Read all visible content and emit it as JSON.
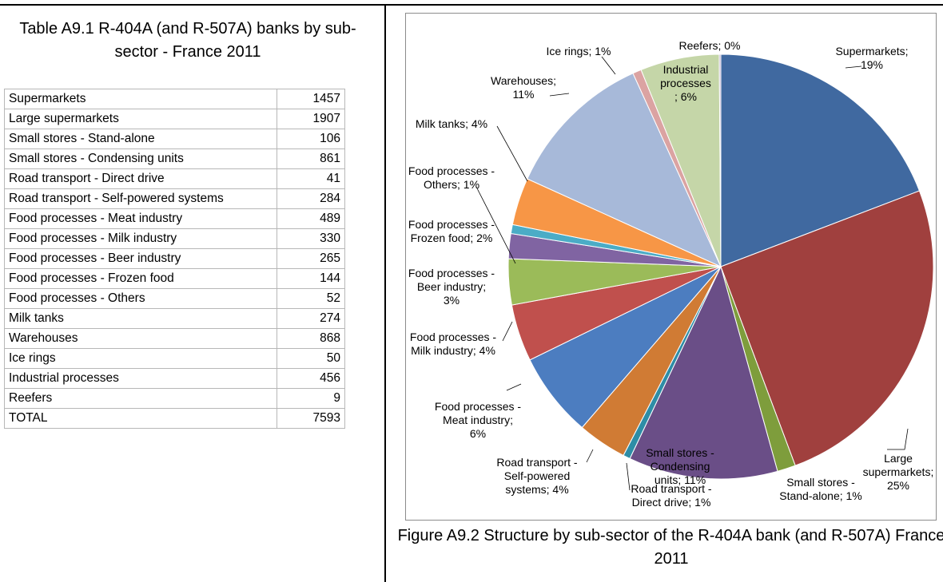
{
  "table": {
    "caption": "Table A9.1 R-404A (and R-507A) banks by sub-sector - France 2011",
    "rows": [
      {
        "label": "Supermarkets",
        "value": "1457"
      },
      {
        "label": "Large supermarkets",
        "value": "1907"
      },
      {
        "label": "Small stores - Stand-alone",
        "value": "106"
      },
      {
        "label": "Small stores - Condensing units",
        "value": "861"
      },
      {
        "label": "Road transport - Direct drive",
        "value": "41"
      },
      {
        "label": "Road transport - Self-powered systems",
        "value": "284"
      },
      {
        "label": "Food processes - Meat industry",
        "value": "489"
      },
      {
        "label": "Food processes - Milk industry",
        "value": "330"
      },
      {
        "label": "Food processes - Beer industry",
        "value": "265"
      },
      {
        "label": "Food processes - Frozen food",
        "value": "144"
      },
      {
        "label": "Food processes - Others",
        "value": "52"
      },
      {
        "label": "Milk tanks",
        "value": "274"
      },
      {
        "label": "Warehouses",
        "value": "868"
      },
      {
        "label": "Ice rings",
        "value": "50"
      },
      {
        "label": "Industrial processes",
        "value": "456"
      },
      {
        "label": "Reefers",
        "value": "9"
      },
      {
        "label": "TOTAL",
        "value": "7593"
      }
    ]
  },
  "figure": {
    "caption": "Figure A9.2 Structure by sub-sector of the R-404A bank (and R-507A) France 2011"
  },
  "chart_data": {
    "type": "pie",
    "slices": [
      {
        "name": "Supermarkets",
        "value": 1457,
        "label": [
          "Supermarkets;",
          "19%"
        ],
        "color": "#4069A0"
      },
      {
        "name": "Large supermarkets",
        "value": 1907,
        "label": [
          "Large",
          "supermarkets;",
          "25%"
        ],
        "color": "#A0403E"
      },
      {
        "name": "Small stores - Stand-alone",
        "value": 106,
        "label": [
          "Small stores -",
          "Stand-alone; 1%"
        ],
        "color": "#7E9D3C"
      },
      {
        "name": "Small stores - Condensing units",
        "value": 861,
        "label": [
          "Small stores -",
          "Condensing",
          "units; 11%"
        ],
        "color": "#6A4E87"
      },
      {
        "name": "Road transport - Direct drive",
        "value": 41,
        "label": [
          "Road transport -",
          "Direct drive; 1%"
        ],
        "color": "#2E8DA6"
      },
      {
        "name": "Road transport - Self-powered systems",
        "value": 284,
        "label": [
          "Road transport -",
          "Self-powered",
          "systems; 4%"
        ],
        "color": "#D07B34"
      },
      {
        "name": "Food processes - Meat industry",
        "value": 489,
        "label": [
          "Food processes -",
          "Meat industry;",
          "6%"
        ],
        "color": "#4C7DC0"
      },
      {
        "name": "Food processes - Milk industry",
        "value": 330,
        "label": [
          "Food processes -",
          "Milk industry; 4%"
        ],
        "color": "#C0504D"
      },
      {
        "name": "Food processes - Beer industry",
        "value": 265,
        "label": [
          "Food processes -",
          "Beer industry;",
          "3%"
        ],
        "color": "#9BBB59"
      },
      {
        "name": "Food processes - Frozen food",
        "value": 144,
        "label": [
          "Food processes -",
          "Frozen food; 2%"
        ],
        "color": "#8064A2"
      },
      {
        "name": "Food processes - Others",
        "value": 52,
        "label": [
          "Food processes -",
          "Others; 1%"
        ],
        "color": "#4BACC6"
      },
      {
        "name": "Milk tanks",
        "value": 274,
        "label": [
          "Milk tanks; 4%"
        ],
        "color": "#F79646"
      },
      {
        "name": "Warehouses",
        "value": 868,
        "label": [
          "Warehouses;",
          "11%"
        ],
        "color": "#A7B9D9"
      },
      {
        "name": "Ice rings",
        "value": 50,
        "label": [
          "Ice rings; 1%"
        ],
        "color": "#DBA3A2"
      },
      {
        "name": "Industrial processes",
        "value": 456,
        "label": [
          "Industrial",
          "processes",
          "; 6%"
        ],
        "color": "#C5D6A8"
      },
      {
        "name": "Reefers",
        "value": 9,
        "label": [
          "Reefers; 0%"
        ],
        "color": "#B4A5C8"
      }
    ]
  }
}
